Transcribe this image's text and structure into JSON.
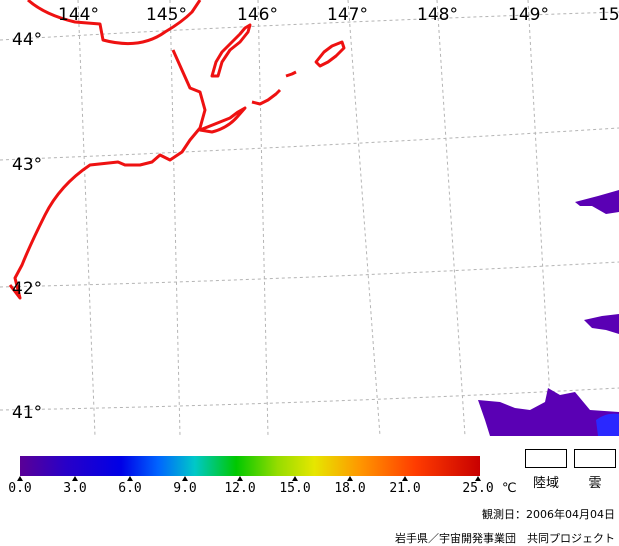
{
  "map": {
    "lon_labels": [
      "144°",
      "145°",
      "146°",
      "147°",
      "148°",
      "149°",
      "15"
    ],
    "lat_labels": [
      "44°",
      "43°",
      "42°",
      "41°"
    ],
    "colors": {
      "coast": "#ee1111",
      "grid": "#b4b4b4",
      "sst_low": "#5a00b4",
      "sst_mid": "#2a28ff"
    }
  },
  "colorbar": {
    "ticks": [
      "0.0",
      "3.0",
      "6.0",
      "9.0",
      "12.0",
      "15.0",
      "18.0",
      "21.0",
      "25.0"
    ],
    "unit": "℃"
  },
  "legend": {
    "land": "陸域",
    "cloud": "雲"
  },
  "observation_date": "観測日：2006年04月04日",
  "credit": "岩手県／宇宙開発事業団　共同プロジェクト"
}
